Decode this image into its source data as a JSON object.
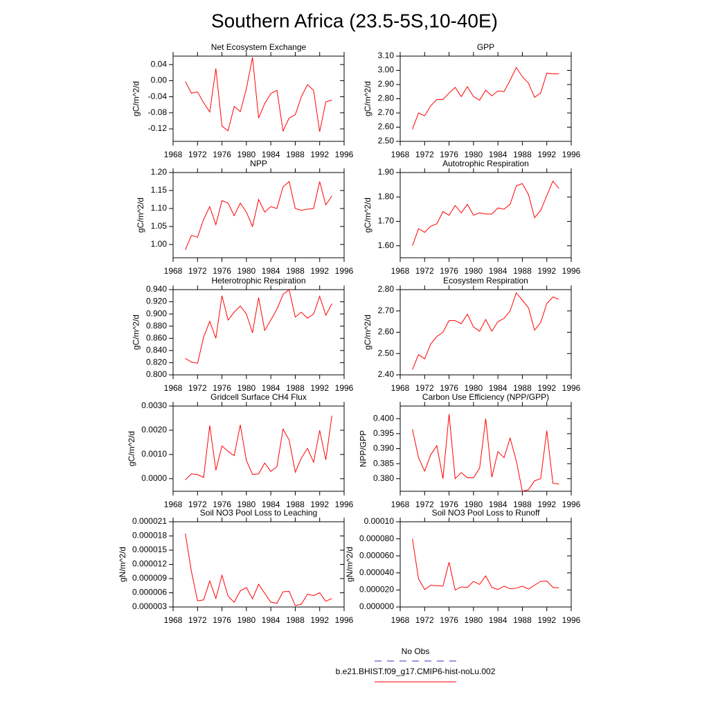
{
  "title": "Southern Africa (23.5-5S,10-40E)",
  "legend": [
    {
      "label": "No Obs",
      "color": "#3333cc",
      "dashed": true
    },
    {
      "label": "b.e21.BHIST.f09_g17.CMIP6-hist-noLu.002",
      "color": "#ff0000",
      "dashed": false
    }
  ],
  "chart_data": [
    {
      "type": "line",
      "title": "Net Ecosystem Exchange",
      "ylabel": "gC/m^2/d",
      "color": "#ff0000",
      "x": [
        1970,
        1971,
        1972,
        1973,
        1974,
        1975,
        1976,
        1977,
        1978,
        1979,
        1980,
        1981,
        1982,
        1983,
        1984,
        1985,
        1986,
        1987,
        1988,
        1989,
        1990,
        1991,
        1992,
        1993,
        1994
      ],
      "values": [
        -0.002,
        -0.031,
        -0.028,
        -0.055,
        -0.078,
        0.03,
        -0.113,
        -0.125,
        -0.064,
        -0.077,
        -0.02,
        0.058,
        -0.093,
        -0.057,
        -0.032,
        -0.024,
        -0.125,
        -0.093,
        -0.085,
        -0.04,
        -0.01,
        -0.024,
        -0.127,
        -0.053,
        -0.048
      ],
      "xlim": [
        1968,
        1996
      ],
      "xticks": [
        1968,
        1972,
        1976,
        1980,
        1984,
        1988,
        1992,
        1996
      ],
      "ylim": [
        -0.151,
        0.061
      ],
      "yticks": [
        0.04,
        {
          "value": 0,
          "label": "0.00"
        },
        -0.04,
        -0.08,
        -0.12
      ]
    },
    {
      "type": "line",
      "title": "GPP",
      "ylabel": "gC/m^2/d",
      "color": "#ff0000",
      "x": [
        1970,
        1971,
        1972,
        1973,
        1974,
        1975,
        1976,
        1977,
        1978,
        1979,
        1980,
        1981,
        1982,
        1983,
        1984,
        1985,
        1986,
        1987,
        1988,
        1989,
        1990,
        1991,
        1992,
        1993,
        1994
      ],
      "values": [
        2.585,
        2.7,
        2.68,
        2.75,
        2.795,
        2.795,
        2.84,
        2.88,
        2.815,
        2.885,
        2.815,
        2.79,
        2.86,
        2.82,
        2.855,
        2.85,
        2.93,
        3.02,
        2.955,
        2.91,
        2.81,
        2.84,
        2.98,
        2.975,
        2.975
      ],
      "xlim": [
        1968,
        1996
      ],
      "xticks": [
        1968,
        1972,
        1976,
        1980,
        1984,
        1988,
        1992,
        1996
      ],
      "ylim": [
        2.5,
        3.1
      ],
      "yticks": [
        {
          "value": 3.1,
          "label": "3.10"
        },
        {
          "value": 3.0,
          "label": "3.00"
        },
        {
          "value": 2.9,
          "label": "2.90"
        },
        {
          "value": 2.8,
          "label": "2.80"
        },
        {
          "value": 2.7,
          "label": "2.70"
        },
        {
          "value": 2.6,
          "label": "2.60"
        },
        {
          "value": 2.5,
          "label": "2.50"
        }
      ]
    },
    {
      "type": "line",
      "title": "NPP",
      "ylabel": "gC/m^2/d",
      "color": "#ff0000",
      "x": [
        1970,
        1971,
        1972,
        1973,
        1974,
        1975,
        1976,
        1977,
        1978,
        1979,
        1980,
        1981,
        1982,
        1983,
        1984,
        1985,
        1986,
        1987,
        1988,
        1989,
        1990,
        1991,
        1992,
        1993,
        1994
      ],
      "values": [
        0.985,
        1.025,
        1.02,
        1.07,
        1.105,
        1.055,
        1.122,
        1.115,
        1.08,
        1.115,
        1.09,
        1.05,
        1.125,
        1.09,
        1.105,
        1.1,
        1.16,
        1.175,
        1.1,
        1.095,
        1.098,
        1.1,
        1.175,
        1.11,
        1.135
      ],
      "xlim": [
        1968,
        1996
      ],
      "xticks": [
        1968,
        1972,
        1976,
        1980,
        1984,
        1988,
        1992,
        1996
      ],
      "ylim": [
        0.963,
        1.2
      ],
      "yticks": [
        {
          "value": 1.2,
          "label": "1.20"
        },
        1.15,
        {
          "value": 1.1,
          "label": "1.10"
        },
        1.05,
        {
          "value": 1.0,
          "label": "1.00"
        }
      ]
    },
    {
      "type": "line",
      "title": "Autotrophic Respiration",
      "ylabel": "gC/m^2/d",
      "color": "#ff0000",
      "x": [
        1970,
        1971,
        1972,
        1973,
        1974,
        1975,
        1976,
        1977,
        1978,
        1979,
        1980,
        1981,
        1982,
        1983,
        1984,
        1985,
        1986,
        1987,
        1988,
        1989,
        1990,
        1991,
        1992,
        1993,
        1994
      ],
      "values": [
        1.6,
        1.67,
        1.655,
        1.68,
        1.69,
        1.74,
        1.725,
        1.765,
        1.735,
        1.77,
        1.725,
        1.735,
        1.73,
        1.73,
        1.755,
        1.75,
        1.77,
        1.845,
        1.855,
        1.81,
        1.715,
        1.745,
        1.805,
        1.865,
        1.835
      ],
      "xlim": [
        1968,
        1996
      ],
      "xticks": [
        1968,
        1972,
        1976,
        1980,
        1984,
        1988,
        1992,
        1996
      ],
      "ylim": [
        1.551,
        1.9
      ],
      "yticks": [
        {
          "value": 1.9,
          "label": "1.90"
        },
        {
          "value": 1.8,
          "label": "1.80"
        },
        {
          "value": 1.7,
          "label": "1.70"
        },
        {
          "value": 1.6,
          "label": "1.60"
        }
      ]
    },
    {
      "type": "line",
      "title": "Heterotrophic Respiration",
      "ylabel": "gC/m^2/d",
      "color": "#ff0000",
      "x": [
        1970,
        1971,
        1972,
        1973,
        1974,
        1975,
        1976,
        1977,
        1978,
        1979,
        1980,
        1981,
        1982,
        1983,
        1984,
        1985,
        1986,
        1987,
        1988,
        1989,
        1990,
        1991,
        1992,
        1993,
        1994
      ],
      "values": [
        0.827,
        0.821,
        0.819,
        0.862,
        0.888,
        0.86,
        0.93,
        0.89,
        0.903,
        0.913,
        0.9,
        0.869,
        0.927,
        0.873,
        0.89,
        0.908,
        0.932,
        0.94,
        0.895,
        0.903,
        0.893,
        0.9,
        0.929,
        0.898,
        0.917
      ],
      "xlim": [
        1968,
        1996
      ],
      "xticks": [
        1968,
        1972,
        1976,
        1980,
        1984,
        1988,
        1992,
        1996
      ],
      "ylim": [
        0.8,
        0.94
      ],
      "yticks": [
        {
          "value": 0.94,
          "label": "0.940"
        },
        {
          "value": 0.92,
          "label": "0.920"
        },
        {
          "value": 0.9,
          "label": "0.900"
        },
        {
          "value": 0.88,
          "label": "0.880"
        },
        {
          "value": 0.86,
          "label": "0.860"
        },
        {
          "value": 0.84,
          "label": "0.840"
        },
        {
          "value": 0.82,
          "label": "0.820"
        },
        {
          "value": 0.8,
          "label": "0.800"
        }
      ]
    },
    {
      "type": "line",
      "title": "Ecosystem Respiration",
      "ylabel": "gC/m^2/d",
      "color": "#ff0000",
      "x": [
        1970,
        1971,
        1972,
        1973,
        1974,
        1975,
        1976,
        1977,
        1978,
        1979,
        1980,
        1981,
        1982,
        1983,
        1984,
        1985,
        1986,
        1987,
        1988,
        1989,
        1990,
        1991,
        1992,
        1993,
        1994
      ],
      "values": [
        2.425,
        2.495,
        2.475,
        2.545,
        2.58,
        2.6,
        2.655,
        2.655,
        2.64,
        2.685,
        2.625,
        2.605,
        2.66,
        2.605,
        2.65,
        2.665,
        2.7,
        2.785,
        2.75,
        2.715,
        2.61,
        2.645,
        2.735,
        2.765,
        2.755
      ],
      "xlim": [
        1968,
        1996
      ],
      "xticks": [
        1968,
        1972,
        1976,
        1980,
        1984,
        1988,
        1992,
        1996
      ],
      "ylim": [
        2.4,
        2.8
      ],
      "yticks": [
        {
          "value": 2.8,
          "label": "2.80"
        },
        {
          "value": 2.7,
          "label": "2.70"
        },
        {
          "value": 2.6,
          "label": "2.60"
        },
        {
          "value": 2.5,
          "label": "2.50"
        },
        {
          "value": 2.4,
          "label": "2.40"
        }
      ]
    },
    {
      "type": "line",
      "title": "Gridcell Surface CH4 Flux",
      "ylabel": "gC/m^2/d",
      "color": "#ff0000",
      "x": [
        1970,
        1971,
        1972,
        1973,
        1974,
        1975,
        1976,
        1977,
        1978,
        1979,
        1980,
        1981,
        1982,
        1983,
        1984,
        1985,
        1986,
        1987,
        1988,
        1989,
        1990,
        1991,
        1992,
        1993,
        1994
      ],
      "values": [
        -5e-05,
        0.0002,
        0.00017,
        5e-05,
        0.0022,
        0.00035,
        0.00135,
        0.00113,
        0.00095,
        0.00222,
        0.00075,
        0.00018,
        0.0002,
        0.00065,
        0.0003,
        0.0005,
        0.00205,
        0.0016,
        0.00027,
        0.00085,
        0.00125,
        0.00068,
        0.002,
        0.00078,
        0.0026
      ],
      "xlim": [
        1968,
        1996
      ],
      "xticks": [
        1968,
        1972,
        1976,
        1980,
        1984,
        1988,
        1992,
        1996
      ],
      "ylim": [
        -0.00052,
        0.003
      ],
      "yticks": [
        {
          "value": 0.003,
          "label": "0.0030"
        },
        {
          "value": 0.002,
          "label": "0.0020"
        },
        {
          "value": 0.001,
          "label": "0.0010"
        },
        {
          "value": 0,
          "label": "0.0000"
        }
      ]
    },
    {
      "type": "line",
      "title": "Carbon Use Efficiency (NPP/GPP)",
      "ylabel": "NPP/GPP",
      "color": "#ff0000",
      "x": [
        1970,
        1971,
        1972,
        1973,
        1974,
        1975,
        1976,
        1977,
        1978,
        1979,
        1980,
        1981,
        1982,
        1983,
        1984,
        1985,
        1986,
        1987,
        1988,
        1989,
        1990,
        1991,
        1992,
        1993,
        1994
      ],
      "values": [
        0.3965,
        0.387,
        0.3825,
        0.388,
        0.391,
        0.38,
        0.4015,
        0.38,
        0.382,
        0.3803,
        0.3803,
        0.3835,
        0.4,
        0.3805,
        0.389,
        0.387,
        0.3935,
        0.386,
        0.3758,
        0.3763,
        0.3793,
        0.38,
        0.396,
        0.3785,
        0.3782
      ],
      "xlim": [
        1968,
        1996
      ],
      "xticks": [
        1968,
        1972,
        1976,
        1980,
        1984,
        1988,
        1992,
        1996
      ],
      "ylim": [
        0.3758,
        0.4042
      ],
      "yticks": [
        {
          "value": 0.4,
          "label": "0.400"
        },
        0.395,
        {
          "value": 0.39,
          "label": "0.390"
        },
        0.385,
        {
          "value": 0.38,
          "label": "0.380"
        }
      ]
    },
    {
      "type": "line",
      "title": "Soil NO3 Pool Loss to Leaching",
      "ylabel": "gN/m^2/d",
      "color": "#ff0000",
      "x": [
        1970,
        1971,
        1972,
        1973,
        1974,
        1975,
        1976,
        1977,
        1978,
        1979,
        1980,
        1981,
        1982,
        1983,
        1984,
        1985,
        1986,
        1987,
        1988,
        1989,
        1990,
        1991,
        1992,
        1993,
        1994
      ],
      "values": [
        1.85e-05,
        1.05e-05,
        4.3e-06,
        4.5e-06,
        8.5e-06,
        4.8e-06,
        9.7e-06,
        5.3e-06,
        4e-06,
        6.4e-06,
        7.1e-06,
        4.7e-06,
        7.8e-06,
        5.9e-06,
        4e-06,
        3.8e-06,
        6.2e-06,
        6.3e-06,
        3.3e-06,
        3.6e-06,
        5.7e-06,
        5.4e-06,
        6e-06,
        4.2e-06,
        4.8e-06
      ],
      "xlim": [
        1968,
        1996
      ],
      "xticks": [
        1968,
        1972,
        1976,
        1980,
        1984,
        1988,
        1992,
        1996
      ],
      "ylim": [
        3e-06,
        2.1e-05
      ],
      "yticks": [
        2.1e-05,
        1.8e-05,
        1.5e-05,
        1.2e-05,
        9e-06,
        6e-06,
        3e-06
      ]
    },
    {
      "type": "line",
      "title": "Soil NO3 Pool Loss to Runoff",
      "ylabel": "gN/m^2/d",
      "color": "#ff0000",
      "x": [
        1970,
        1971,
        1972,
        1973,
        1974,
        1975,
        1976,
        1977,
        1978,
        1979,
        1980,
        1981,
        1982,
        1983,
        1984,
        1985,
        1986,
        1987,
        1988,
        1989,
        1990,
        1991,
        1992,
        1993,
        1994
      ],
      "values": [
        8e-05,
        3.3e-05,
        2.05e-05,
        2.55e-05,
        2.5e-05,
        2.45e-05,
        5.25e-05,
        2e-05,
        2.35e-05,
        2.3e-05,
        3e-05,
        2.65e-05,
        3.65e-05,
        2.3e-05,
        2.05e-05,
        2.45e-05,
        2.15e-05,
        2.2e-05,
        2.45e-05,
        2.1e-05,
        2.55e-05,
        3e-05,
        3.05e-05,
        2.3e-05,
        2.25e-05
      ],
      "xlim": [
        1968,
        1996
      ],
      "xticks": [
        1968,
        1972,
        1976,
        1980,
        1984,
        1988,
        1992,
        1996
      ],
      "ylim": [
        0,
        0.0001
      ],
      "yticks": [
        {
          "value": 0.0001,
          "label": "0.00010"
        },
        {
          "value": 8e-05,
          "label": "0.000080"
        },
        {
          "value": 6e-05,
          "label": "0.000060"
        },
        {
          "value": 4e-05,
          "label": "0.000040"
        },
        {
          "value": 2e-05,
          "label": "0.000020"
        },
        {
          "value": 0,
          "label": "0.000000"
        }
      ]
    }
  ]
}
